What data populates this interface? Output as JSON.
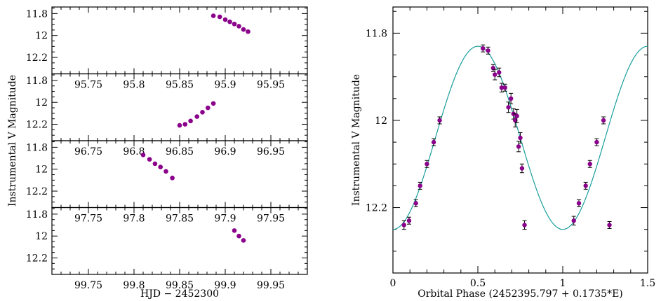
{
  "colors": {
    "points": "#8b008b",
    "model": "#1a9e9e",
    "axes": "#000000"
  },
  "chart_data": [
    {
      "type": "scatter",
      "title": "",
      "ylabel": "Instrumental V Magnitude",
      "xlabel": "HJD − 2452300",
      "panels": [
        {
          "xlim": [
            95.71,
            95.99
          ],
          "xticks": [
            "95.75",
            "95.8",
            "95.85",
            "95.9",
            "95.95"
          ],
          "xtick_values": [
            95.75,
            95.8,
            95.85,
            95.9,
            95.95
          ],
          "ylim": [
            12.35,
            11.74
          ],
          "yticks": [
            "11.8",
            "12",
            "12.2"
          ],
          "ytick_values": [
            11.8,
            12.0,
            12.2
          ],
          "x": [
            95.887,
            95.894,
            95.9,
            95.905,
            95.91,
            95.915,
            95.92,
            95.925
          ],
          "y": [
            11.82,
            11.83,
            11.855,
            11.875,
            11.895,
            11.915,
            11.945,
            11.965
          ]
        },
        {
          "xlim": [
            96.71,
            96.99
          ],
          "xticks": [
            "96.75",
            "96.8",
            "96.85",
            "96.9",
            "96.95"
          ],
          "xtick_values": [
            96.75,
            96.8,
            96.85,
            96.9,
            96.95
          ],
          "ylim": [
            12.35,
            11.74
          ],
          "yticks": [
            "11.8",
            "12",
            "12.2"
          ],
          "ytick_values": [
            11.8,
            12.0,
            12.2
          ],
          "x": [
            96.85,
            96.856,
            96.862,
            96.869,
            96.875,
            96.881,
            96.887
          ],
          "y": [
            12.21,
            12.2,
            12.17,
            12.13,
            12.09,
            12.05,
            12.01
          ]
        },
        {
          "xlim": [
            97.71,
            97.99
          ],
          "xticks": [
            "97.75",
            "97.8",
            "97.85",
            "97.9",
            "97.95"
          ],
          "xtick_values": [
            97.75,
            97.8,
            97.85,
            97.9,
            97.95
          ],
          "ylim": [
            12.35,
            11.74
          ],
          "yticks": [
            "11.8",
            "12",
            "12.2"
          ],
          "ytick_values": [
            11.8,
            12.0,
            12.2
          ],
          "x": [
            97.81,
            97.817,
            97.823,
            97.829,
            97.835,
            97.842
          ],
          "y": [
            11.87,
            11.91,
            11.95,
            11.98,
            12.02,
            12.08
          ]
        },
        {
          "xlim": [
            99.71,
            99.99
          ],
          "xticks": [
            "99.75",
            "99.8",
            "99.85",
            "99.9",
            "99.95"
          ],
          "xtick_values": [
            99.75,
            99.8,
            99.85,
            99.9,
            99.95
          ],
          "ylim": [
            12.35,
            11.74
          ],
          "yticks": [
            "11.8",
            "12",
            "12.2"
          ],
          "ytick_values": [
            11.8,
            12.0,
            12.2
          ],
          "x": [
            99.91,
            99.915,
            99.92
          ],
          "y": [
            11.95,
            12.0,
            12.04
          ]
        }
      ]
    },
    {
      "type": "scatter",
      "title": "",
      "xlabel": "Orbital Phase (2452395.797 + 0.1735*E)",
      "ylabel": "Instrumental V Magnitude",
      "xlim": [
        0,
        1.5
      ],
      "ylim": [
        12.35,
        11.74
      ],
      "xticks": [
        "0",
        "0.5",
        "1",
        "1.5"
      ],
      "xtick_values": [
        0,
        0.5,
        1,
        1.5
      ],
      "yticks": [
        "11.8",
        "12",
        "12.2"
      ],
      "ytick_values": [
        11.8,
        12.0,
        12.2
      ],
      "points": {
        "x": [
          0.065,
          0.095,
          0.135,
          0.16,
          0.2,
          0.24,
          0.275,
          0.53,
          0.56,
          0.59,
          0.6,
          0.625,
          0.64,
          0.66,
          0.68,
          0.695,
          0.71,
          0.72,
          0.73,
          0.74,
          0.75,
          0.76,
          0.775,
          1.065,
          1.095,
          1.135,
          1.16,
          1.2,
          1.24,
          1.275
        ],
        "y": [
          12.24,
          12.23,
          12.19,
          12.15,
          12.1,
          12.05,
          12.0,
          11.835,
          11.84,
          11.88,
          11.895,
          11.89,
          11.925,
          11.925,
          11.97,
          11.95,
          11.985,
          12.0,
          11.99,
          12.06,
          12.04,
          12.11,
          12.24,
          12.23,
          12.19,
          12.15,
          12.1,
          12.05,
          12.0,
          12.24
        ],
        "yerr": [
          0.01,
          0.008,
          0.008,
          0.008,
          0.008,
          0.008,
          0.008,
          0.008,
          0.008,
          0.008,
          0.012,
          0.01,
          0.01,
          0.008,
          0.012,
          0.012,
          0.012,
          0.015,
          0.015,
          0.012,
          0.012,
          0.01,
          0.01,
          0.01,
          0.008,
          0.008,
          0.008,
          0.008,
          0.008,
          0.008
        ]
      },
      "model": {
        "type": "sine",
        "mean": 12.04,
        "amplitude": 0.21,
        "period": 1.0,
        "min_phase": 0.5
      }
    }
  ]
}
